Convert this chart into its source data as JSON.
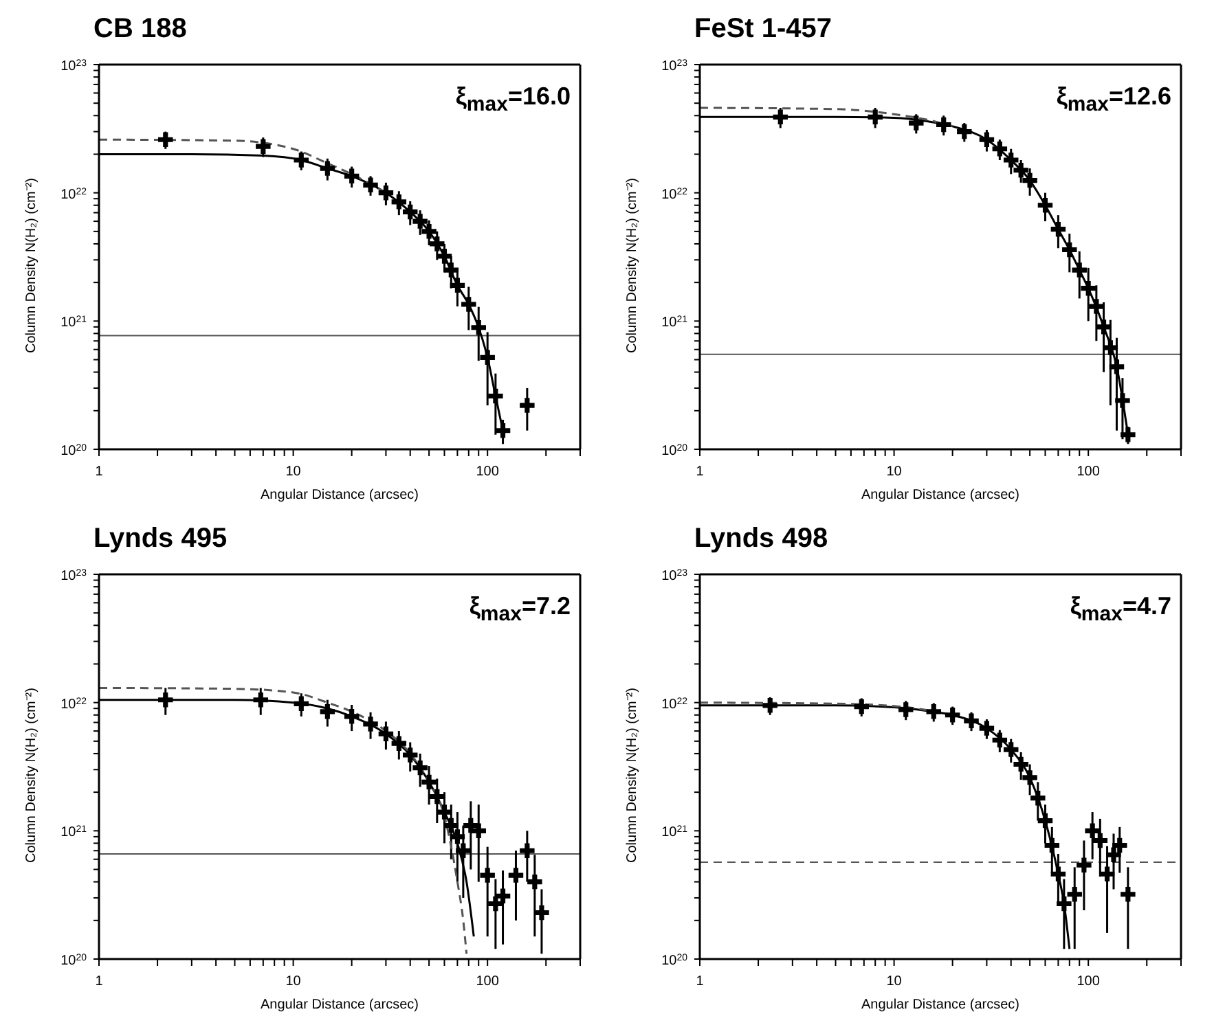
{
  "chart_data": [
    {
      "type": "scatter",
      "title": "CB 188",
      "xlabel": "Angular Distance (arcsec)",
      "ylabel": "Column Density N(H₂) (cm⁻²)",
      "annotations": [
        "ξ$_{max}$=16.0"
      ],
      "log": "xy",
      "grid": false,
      "xlim": [
        1,
        300
      ],
      "ylim": [
        1e+20,
        1e+23
      ],
      "xticks": [
        1,
        {
          "value": 2,
          "label": null
        },
        {
          "value": 3,
          "label": null
        },
        {
          "value": 4,
          "label": null
        },
        {
          "value": 5,
          "label": null
        },
        {
          "value": 6,
          "label": null
        },
        {
          "value": 7,
          "label": null
        },
        {
          "value": 8,
          "label": null
        },
        {
          "value": 9,
          "label": null
        },
        10,
        {
          "value": 20,
          "label": null
        },
        {
          "value": 30,
          "label": null
        },
        {
          "value": 40,
          "label": null
        },
        {
          "value": 50,
          "label": null
        },
        {
          "value": 60,
          "label": null
        },
        {
          "value": 70,
          "label": null
        },
        {
          "value": 80,
          "label": null
        },
        {
          "value": 90,
          "label": null
        },
        100,
        {
          "value": 200,
          "label": null
        },
        {
          "value": 300,
          "label": null
        }
      ],
      "yticks": [
        {
          "value": 1e+20,
          "label": "10$^{20}$"
        },
        {
          "value": 2e+20,
          "label": null
        },
        {
          "value": 3e+20,
          "label": null
        },
        {
          "value": 4e+20,
          "label": null
        },
        {
          "value": 5e+20,
          "label": null
        },
        {
          "value": 6e+20,
          "label": null
        },
        {
          "value": 7e+20,
          "label": null
        },
        {
          "value": 8e+20,
          "label": null
        },
        {
          "value": 9e+20,
          "label": null
        },
        {
          "value": 1e+21,
          "label": "10$^{21}$"
        },
        {
          "value": 2e+21,
          "label": null
        },
        {
          "value": 3e+21,
          "label": null
        },
        {
          "value": 4e+21,
          "label": null
        },
        {
          "value": 5e+21,
          "label": null
        },
        {
          "value": 6e+21,
          "label": null
        },
        {
          "value": 7e+21,
          "label": null
        },
        {
          "value": 8e+21,
          "label": null
        },
        {
          "value": 9e+21,
          "label": null
        },
        {
          "value": 1e+22,
          "label": "10$^{22}$"
        },
        {
          "value": 2e+22,
          "label": null
        },
        {
          "value": 3e+22,
          "label": null
        },
        {
          "value": 4e+22,
          "label": null
        },
        {
          "value": 5e+22,
          "label": null
        },
        {
          "value": 6e+22,
          "label": null
        },
        {
          "value": 7e+22,
          "label": null
        },
        {
          "value": 8e+22,
          "label": null
        },
        {
          "value": 9e+22,
          "label": null
        },
        {
          "value": 1e+23,
          "label": "10$^{23}$"
        }
      ],
      "ref_lines": [
        {
          "axis": "y",
          "value": 7.7e+20,
          "color": "#555555",
          "line_style": "solid"
        }
      ],
      "series": [
        {
          "type": "scatter",
          "color": "#000000",
          "marker": "cross",
          "x": [
            2.2,
            7,
            11,
            15,
            20,
            25,
            30,
            35,
            40,
            45,
            50,
            55,
            60,
            65,
            70,
            80,
            90,
            100,
            110,
            120,
            160
          ],
          "values": [
            2.6e+22,
            2.3e+22,
            1.8e+22,
            1.55e+22,
            1.35e+22,
            1.15e+22,
            1e+22,
            8.5e+21,
            7.1e+21,
            6e+21,
            5e+21,
            4e+21,
            3.2e+21,
            2.5e+21,
            1.9e+21,
            1.35e+21,
            8.9e+20,
            5.2e+20,
            2.6e+20,
            1.4e+20,
            2.2e+20
          ],
          "errors": [
            4e+21,
            4e+21,
            3e+21,
            3e+21,
            2.5e+21,
            2e+21,
            2e+21,
            1.8e+21,
            1.5e+21,
            1.3e+21,
            1.1e+21,
            1e+21,
            8e+20,
            7e+20,
            6e+20,
            5e+20,
            4e+20,
            3e+20,
            1.3e+20,
            3e+19,
            8e+19
          ]
        },
        {
          "type": "line",
          "color": "#000000",
          "marker": "none",
          "line_style": "solid",
          "x": [
            1,
            3,
            7,
            11,
            15,
            20,
            30,
            40,
            50,
            60,
            70,
            80,
            90,
            100,
            110,
            120
          ],
          "values": [
            2e+22,
            2e+22,
            1.95e+22,
            1.8e+22,
            1.55e+22,
            1.35e+22,
            1e+22,
            7.1e+21,
            5e+21,
            3.2e+21,
            1.9e+21,
            1.35e+21,
            8.9e+20,
            5.2e+20,
            2.6e+20,
            1.4e+20
          ]
        },
        {
          "type": "line",
          "color": "#555555",
          "marker": "none",
          "line_style": "dashed",
          "x": [
            1,
            5,
            10,
            15,
            20,
            30
          ],
          "values": [
            2.6e+22,
            2.55e+22,
            2.2e+22,
            1.7e+22,
            1.4e+22,
            1e+22
          ]
        }
      ]
    },
    {
      "type": "scatter",
      "title": "FeSt 1-457",
      "xlabel": "Angular Distance (arcsec)",
      "ylabel": "Column Density N(H₂) (cm⁻²)",
      "annotations": [
        "ξ$_{max}$=12.6"
      ],
      "log": "xy",
      "grid": false,
      "xlim": [
        1,
        300
      ],
      "ylim": [
        1e+20,
        1e+23
      ],
      "xticks": [
        1,
        {
          "value": 2,
          "label": null
        },
        {
          "value": 3,
          "label": null
        },
        {
          "value": 4,
          "label": null
        },
        {
          "value": 5,
          "label": null
        },
        {
          "value": 6,
          "label": null
        },
        {
          "value": 7,
          "label": null
        },
        {
          "value": 8,
          "label": null
        },
        {
          "value": 9,
          "label": null
        },
        10,
        {
          "value": 20,
          "label": null
        },
        {
          "value": 30,
          "label": null
        },
        {
          "value": 40,
          "label": null
        },
        {
          "value": 50,
          "label": null
        },
        {
          "value": 60,
          "label": null
        },
        {
          "value": 70,
          "label": null
        },
        {
          "value": 80,
          "label": null
        },
        {
          "value": 90,
          "label": null
        },
        100,
        {
          "value": 200,
          "label": null
        },
        {
          "value": 300,
          "label": null
        }
      ],
      "yticks": [
        {
          "value": 1e+20,
          "label": "10$^{20}$"
        },
        {
          "value": 2e+20,
          "label": null
        },
        {
          "value": 3e+20,
          "label": null
        },
        {
          "value": 4e+20,
          "label": null
        },
        {
          "value": 5e+20,
          "label": null
        },
        {
          "value": 6e+20,
          "label": null
        },
        {
          "value": 7e+20,
          "label": null
        },
        {
          "value": 8e+20,
          "label": null
        },
        {
          "value": 9e+20,
          "label": null
        },
        {
          "value": 1e+21,
          "label": "10$^{21}$"
        },
        {
          "value": 2e+21,
          "label": null
        },
        {
          "value": 3e+21,
          "label": null
        },
        {
          "value": 4e+21,
          "label": null
        },
        {
          "value": 5e+21,
          "label": null
        },
        {
          "value": 6e+21,
          "label": null
        },
        {
          "value": 7e+21,
          "label": null
        },
        {
          "value": 8e+21,
          "label": null
        },
        {
          "value": 9e+21,
          "label": null
        },
        {
          "value": 1e+22,
          "label": "10$^{22}$"
        },
        {
          "value": 2e+22,
          "label": null
        },
        {
          "value": 3e+22,
          "label": null
        },
        {
          "value": 4e+22,
          "label": null
        },
        {
          "value": 5e+22,
          "label": null
        },
        {
          "value": 6e+22,
          "label": null
        },
        {
          "value": 7e+22,
          "label": null
        },
        {
          "value": 8e+22,
          "label": null
        },
        {
          "value": 9e+22,
          "label": null
        },
        {
          "value": 1e+23,
          "label": "10$^{23}$"
        }
      ],
      "ref_lines": [
        {
          "axis": "y",
          "value": 5.5e+20,
          "color": "#555555",
          "line_style": "solid"
        }
      ],
      "series": [
        {
          "type": "scatter",
          "color": "#000000",
          "marker": "cross",
          "x": [
            2.6,
            8,
            13,
            18,
            23,
            30,
            35,
            40,
            45,
            50,
            60,
            70,
            80,
            90,
            100,
            110,
            120,
            130,
            140,
            150,
            160
          ],
          "values": [
            3.9e+22,
            3.9e+22,
            3.5e+22,
            3.4e+22,
            3e+22,
            2.6e+22,
            2.2e+22,
            1.8e+22,
            1.5e+22,
            1.25e+22,
            8e+21,
            5.2e+21,
            3.6e+21,
            2.5e+21,
            1.8e+21,
            1.3e+21,
            9e+20,
            6.2e+20,
            4.4e+20,
            2.4e+20,
            1.3e+20
          ],
          "errors": [
            7e+21,
            7e+21,
            6e+21,
            6e+21,
            5e+21,
            5e+21,
            4e+21,
            4e+21,
            3e+21,
            3e+21,
            2e+21,
            1.5e+21,
            1.2e+21,
            1e+21,
            8e+20,
            6e+20,
            5e+20,
            4e+20,
            3e+20,
            1.2e+20,
            2e+19
          ]
        },
        {
          "type": "line",
          "color": "#000000",
          "marker": "none",
          "line_style": "solid",
          "x": [
            1,
            5,
            10,
            15,
            20,
            30,
            40,
            50,
            60,
            70,
            80,
            90,
            100,
            120,
            140,
            160
          ],
          "values": [
            3.9e+22,
            3.9e+22,
            3.85e+22,
            3.6e+22,
            3.3e+22,
            2.6e+22,
            1.8e+22,
            1.25e+22,
            8e+21,
            5.2e+21,
            3.6e+21,
            2.5e+21,
            1.8e+21,
            9e+20,
            4.4e+20,
            1.3e+20
          ]
        },
        {
          "type": "line",
          "color": "#555555",
          "marker": "none",
          "line_style": "dashed",
          "x": [
            1,
            5,
            10,
            15,
            20
          ],
          "values": [
            4.6e+22,
            4.5e+22,
            4.1e+22,
            3.7e+22,
            3.3e+22
          ]
        }
      ]
    },
    {
      "type": "scatter",
      "title": "Lynds 495",
      "xlabel": "Angular Distance (arcsec)",
      "ylabel": "Column Density N(H₂) (cm⁻²)",
      "annotations": [
        "ξ$_{max}$=7.2"
      ],
      "log": "xy",
      "grid": false,
      "xlim": [
        1,
        300
      ],
      "ylim": [
        1e+20,
        1e+23
      ],
      "xticks": [
        1,
        {
          "value": 2,
          "label": null
        },
        {
          "value": 3,
          "label": null
        },
        {
          "value": 4,
          "label": null
        },
        {
          "value": 5,
          "label": null
        },
        {
          "value": 6,
          "label": null
        },
        {
          "value": 7,
          "label": null
        },
        {
          "value": 8,
          "label": null
        },
        {
          "value": 9,
          "label": null
        },
        10,
        {
          "value": 20,
          "label": null
        },
        {
          "value": 30,
          "label": null
        },
        {
          "value": 40,
          "label": null
        },
        {
          "value": 50,
          "label": null
        },
        {
          "value": 60,
          "label": null
        },
        {
          "value": 70,
          "label": null
        },
        {
          "value": 80,
          "label": null
        },
        {
          "value": 90,
          "label": null
        },
        100,
        {
          "value": 200,
          "label": null
        },
        {
          "value": 300,
          "label": null
        }
      ],
      "yticks": [
        {
          "value": 1e+20,
          "label": "10$^{20}$"
        },
        {
          "value": 2e+20,
          "label": null
        },
        {
          "value": 3e+20,
          "label": null
        },
        {
          "value": 4e+20,
          "label": null
        },
        {
          "value": 5e+20,
          "label": null
        },
        {
          "value": 6e+20,
          "label": null
        },
        {
          "value": 7e+20,
          "label": null
        },
        {
          "value": 8e+20,
          "label": null
        },
        {
          "value": 9e+20,
          "label": null
        },
        {
          "value": 1e+21,
          "label": "10$^{21}$"
        },
        {
          "value": 2e+21,
          "label": null
        },
        {
          "value": 3e+21,
          "label": null
        },
        {
          "value": 4e+21,
          "label": null
        },
        {
          "value": 5e+21,
          "label": null
        },
        {
          "value": 6e+21,
          "label": null
        },
        {
          "value": 7e+21,
          "label": null
        },
        {
          "value": 8e+21,
          "label": null
        },
        {
          "value": 9e+21,
          "label": null
        },
        {
          "value": 1e+22,
          "label": "10$^{22}$"
        },
        {
          "value": 2e+22,
          "label": null
        },
        {
          "value": 3e+22,
          "label": null
        },
        {
          "value": 4e+22,
          "label": null
        },
        {
          "value": 5e+22,
          "label": null
        },
        {
          "value": 6e+22,
          "label": null
        },
        {
          "value": 7e+22,
          "label": null
        },
        {
          "value": 8e+22,
          "label": null
        },
        {
          "value": 9e+22,
          "label": null
        },
        {
          "value": 1e+23,
          "label": "10$^{23}$"
        }
      ],
      "ref_lines": [
        {
          "axis": "y",
          "value": 6.6e+20,
          "color": "#555555",
          "line_style": "solid"
        }
      ],
      "series": [
        {
          "type": "scatter",
          "color": "#000000",
          "marker": "cross",
          "x": [
            2.2,
            6.8,
            11,
            15,
            20,
            25,
            30,
            35,
            40,
            45,
            50,
            55,
            60,
            65,
            70,
            75,
            82,
            90,
            100,
            110,
            120,
            140,
            160,
            175,
            190
          ],
          "values": [
            1.05e+22,
            1.05e+22,
            9.8e+21,
            8.5e+21,
            7.8e+21,
            6.8e+21,
            5.7e+21,
            4.8e+21,
            3.9e+21,
            3.1e+21,
            2.4e+21,
            1.85e+21,
            1.4e+21,
            1.1e+21,
            9e+20,
            7e+20,
            1.1e+21,
            1e+21,
            4.5e+20,
            2.7e+20,
            3.1e+20,
            4.5e+20,
            7e+20,
            4e+20,
            2.3e+20
          ],
          "errors": [
            2.5e+21,
            2.5e+21,
            2e+21,
            2e+21,
            1.8e+21,
            1.6e+21,
            1.4e+21,
            1.2e+21,
            1e+21,
            9e+20,
            8e+20,
            7e+20,
            6e+20,
            5e+20,
            5e+20,
            4e+20,
            6e+20,
            6e+20,
            3e+20,
            1.5e+20,
            1.8e+20,
            2.5e+20,
            3e+20,
            2.5e+20,
            1.2e+20
          ]
        },
        {
          "type": "line",
          "color": "#000000",
          "marker": "none",
          "line_style": "solid",
          "x": [
            1,
            5,
            10,
            15,
            20,
            30,
            40,
            50,
            60,
            70,
            78,
            85
          ],
          "values": [
            1.05e+22,
            1.05e+22,
            1e+22,
            9e+21,
            7.8e+21,
            5.7e+21,
            3.9e+21,
            2.4e+21,
            1.4e+21,
            8e+20,
            4e+20,
            1.5e+20
          ]
        },
        {
          "type": "line",
          "color": "#555555",
          "marker": "none",
          "line_style": "dashed",
          "x": [
            1,
            5,
            10,
            15,
            20,
            30,
            40,
            50,
            60,
            70,
            75,
            78
          ],
          "values": [
            1.3e+22,
            1.28e+22,
            1.2e+22,
            1e+22,
            8.5e+21,
            6e+21,
            4e+21,
            2.4e+21,
            1.3e+21,
            4e+20,
            2e+20,
            1.1e+20
          ]
        }
      ]
    },
    {
      "type": "scatter",
      "title": "Lynds 498",
      "xlabel": "Angular Distance (arcsec)",
      "ylabel": "Column Density N(H₂) (cm⁻²)",
      "annotations": [
        "ξ$_{max}$=4.7"
      ],
      "log": "xy",
      "grid": false,
      "xlim": [
        1,
        300
      ],
      "ylim": [
        1e+20,
        1e+23
      ],
      "xticks": [
        1,
        {
          "value": 2,
          "label": null
        },
        {
          "value": 3,
          "label": null
        },
        {
          "value": 4,
          "label": null
        },
        {
          "value": 5,
          "label": null
        },
        {
          "value": 6,
          "label": null
        },
        {
          "value": 7,
          "label": null
        },
        {
          "value": 8,
          "label": null
        },
        {
          "value": 9,
          "label": null
        },
        10,
        {
          "value": 20,
          "label": null
        },
        {
          "value": 30,
          "label": null
        },
        {
          "value": 40,
          "label": null
        },
        {
          "value": 50,
          "label": null
        },
        {
          "value": 60,
          "label": null
        },
        {
          "value": 70,
          "label": null
        },
        {
          "value": 80,
          "label": null
        },
        {
          "value": 90,
          "label": null
        },
        100,
        {
          "value": 200,
          "label": null
        },
        {
          "value": 300,
          "label": null
        }
      ],
      "yticks": [
        {
          "value": 1e+20,
          "label": "10$^{20}$"
        },
        {
          "value": 2e+20,
          "label": null
        },
        {
          "value": 3e+20,
          "label": null
        },
        {
          "value": 4e+20,
          "label": null
        },
        {
          "value": 5e+20,
          "label": null
        },
        {
          "value": 6e+20,
          "label": null
        },
        {
          "value": 7e+20,
          "label": null
        },
        {
          "value": 8e+20,
          "label": null
        },
        {
          "value": 9e+20,
          "label": null
        },
        {
          "value": 1e+21,
          "label": "10$^{21}$"
        },
        {
          "value": 2e+21,
          "label": null
        },
        {
          "value": 3e+21,
          "label": null
        },
        {
          "value": 4e+21,
          "label": null
        },
        {
          "value": 5e+21,
          "label": null
        },
        {
          "value": 6e+21,
          "label": null
        },
        {
          "value": 7e+21,
          "label": null
        },
        {
          "value": 8e+21,
          "label": null
        },
        {
          "value": 9e+21,
          "label": null
        },
        {
          "value": 1e+22,
          "label": "10$^{22}$"
        },
        {
          "value": 2e+22,
          "label": null
        },
        {
          "value": 3e+22,
          "label": null
        },
        {
          "value": 4e+22,
          "label": null
        },
        {
          "value": 5e+22,
          "label": null
        },
        {
          "value": 6e+22,
          "label": null
        },
        {
          "value": 7e+22,
          "label": null
        },
        {
          "value": 8e+22,
          "label": null
        },
        {
          "value": 9e+22,
          "label": null
        },
        {
          "value": 1e+23,
          "label": "10$^{23}$"
        }
      ],
      "ref_lines": [
        {
          "axis": "y",
          "value": 5.7e+20,
          "color": "#555555",
          "line_style": "dashed"
        }
      ],
      "series": [
        {
          "type": "scatter",
          "color": "#000000",
          "marker": "cross",
          "x": [
            2.3,
            6.8,
            11.5,
            16,
            20,
            25,
            30,
            35,
            40,
            45,
            50,
            55,
            60,
            65,
            70,
            75,
            85,
            95,
            105,
            115,
            125,
            135,
            145,
            160
          ],
          "values": [
            9.5e+21,
            9.3e+21,
            8.8e+21,
            8.5e+21,
            8e+21,
            7.2e+21,
            6.3e+21,
            5.1e+21,
            4.3e+21,
            3.3e+21,
            2.6e+21,
            1.8e+21,
            1.2e+21,
            7.7e+20,
            4.6e+20,
            2.7e+20,
            3.2e+20,
            5.4e+20,
            1e+21,
            8.4e+20,
            4.6e+20,
            6.5e+20,
            7.7e+20,
            3.2e+20
          ],
          "errors": [
            1.5e+21,
            1.5e+21,
            1.5e+21,
            1.4e+21,
            1.3e+21,
            1.2e+21,
            1.1e+21,
            1e+21,
            9e+20,
            8e+20,
            7e+20,
            6e+20,
            4e+20,
            3e+20,
            2e+20,
            1.5e+20,
            2e+20,
            3e+20,
            4e+20,
            4e+20,
            3e+20,
            3e+20,
            3e+20,
            2e+20
          ]
        },
        {
          "type": "line",
          "color": "#000000",
          "marker": "none",
          "line_style": "solid",
          "x": [
            1,
            5,
            10,
            15,
            20,
            30,
            40,
            50,
            60,
            70,
            75,
            80
          ],
          "values": [
            9.5e+21,
            9.5e+21,
            9.2e+21,
            8.6e+21,
            8e+21,
            6.3e+21,
            4.3e+21,
            2.6e+21,
            1.2e+21,
            4.6e+20,
            2.7e+20,
            1.2e+20
          ]
        },
        {
          "type": "line",
          "color": "#555555",
          "marker": "none",
          "line_style": "dashed",
          "x": [
            1,
            5,
            10,
            15,
            20
          ],
          "values": [
            1e+22,
            9.8e+21,
            9.4e+21,
            8.7e+21,
            8e+21
          ]
        }
      ]
    }
  ]
}
